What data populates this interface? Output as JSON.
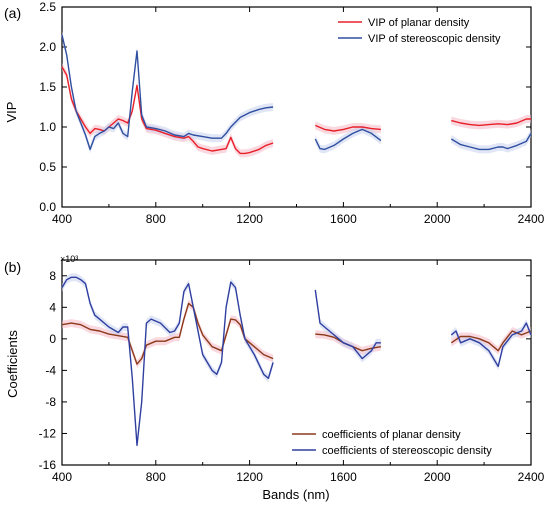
{
  "colors": {
    "planar_vip": "#e8202a",
    "stereo_vip": "#2f4f9f",
    "planar_coef": "#8b3a1a",
    "stereo_coef": "#2f3f9f",
    "band_planar": "#f4b8c4",
    "band_stereo": "#c9d2f0"
  },
  "chart_data": [
    {
      "panel_label": "(a)",
      "type": "line",
      "xlabel": "",
      "ylabel": "VIP",
      "xlim": [
        400,
        2400
      ],
      "ylim": [
        0.0,
        2.5
      ],
      "xticks": [
        "400",
        "800",
        "1200",
        "1600",
        "2000",
        "2400"
      ],
      "yticks": [
        "0.0",
        "0.5",
        "1.0",
        "1.5",
        "2.0",
        "2.5"
      ],
      "legend_position": "top-right",
      "series": [
        {
          "name": "VIP of planar density",
          "color_key": "planar_vip",
          "segments": [
            [
              [
                400,
                1.75
              ],
              [
                420,
                1.65
              ],
              [
                440,
                1.35
              ],
              [
                460,
                1.2
              ],
              [
                480,
                1.1
              ],
              [
                500,
                1.0
              ],
              [
                520,
                0.92
              ],
              [
                540,
                0.98
              ],
              [
                560,
                0.97
              ],
              [
                580,
                0.95
              ],
              [
                600,
                1.0
              ],
              [
                620,
                1.05
              ],
              [
                640,
                1.1
              ],
              [
                660,
                1.08
              ],
              [
                680,
                1.05
              ],
              [
                700,
                1.2
              ],
              [
                720,
                1.52
              ],
              [
                740,
                1.1
              ],
              [
                760,
                0.98
              ],
              [
                800,
                0.96
              ],
              [
                840,
                0.92
              ],
              [
                880,
                0.88
              ],
              [
                920,
                0.86
              ],
              [
                940,
                0.88
              ],
              [
                960,
                0.82
              ],
              [
                980,
                0.75
              ],
              [
                1000,
                0.73
              ],
              [
                1040,
                0.7
              ],
              [
                1080,
                0.72
              ],
              [
                1100,
                0.73
              ],
              [
                1120,
                0.87
              ],
              [
                1140,
                0.73
              ],
              [
                1160,
                0.67
              ],
              [
                1180,
                0.67
              ],
              [
                1200,
                0.68
              ],
              [
                1240,
                0.72
              ],
              [
                1270,
                0.77
              ],
              [
                1300,
                0.8
              ]
            ],
            [
              [
                1480,
                1.02
              ],
              [
                1520,
                0.97
              ],
              [
                1560,
                0.95
              ],
              [
                1600,
                0.97
              ],
              [
                1640,
                1.0
              ],
              [
                1680,
                1.0
              ],
              [
                1720,
                0.98
              ],
              [
                1760,
                0.97
              ]
            ],
            [
              [
                2060,
                1.08
              ],
              [
                2100,
                1.05
              ],
              [
                2140,
                1.03
              ],
              [
                2180,
                1.02
              ],
              [
                2220,
                1.03
              ],
              [
                2260,
                1.04
              ],
              [
                2300,
                1.03
              ],
              [
                2340,
                1.05
              ],
              [
                2380,
                1.1
              ],
              [
                2400,
                1.1
              ]
            ]
          ]
        },
        {
          "name": "VIP of stereoscopic density",
          "color_key": "stereo_vip",
          "segments": [
            [
              [
                400,
                2.15
              ],
              [
                420,
                1.9
              ],
              [
                440,
                1.5
              ],
              [
                460,
                1.2
              ],
              [
                480,
                1.05
              ],
              [
                500,
                0.9
              ],
              [
                520,
                0.72
              ],
              [
                540,
                0.88
              ],
              [
                560,
                0.92
              ],
              [
                580,
                0.95
              ],
              [
                600,
                1.0
              ],
              [
                620,
                0.98
              ],
              [
                640,
                1.05
              ],
              [
                660,
                0.92
              ],
              [
                680,
                0.88
              ],
              [
                700,
                1.45
              ],
              [
                720,
                1.95
              ],
              [
                740,
                1.15
              ],
              [
                760,
                1.0
              ],
              [
                800,
                0.98
              ],
              [
                840,
                0.95
              ],
              [
                880,
                0.9
              ],
              [
                920,
                0.88
              ],
              [
                940,
                0.92
              ],
              [
                960,
                0.9
              ],
              [
                1000,
                0.88
              ],
              [
                1040,
                0.86
              ],
              [
                1080,
                0.86
              ],
              [
                1100,
                0.92
              ],
              [
                1120,
                1.0
              ],
              [
                1160,
                1.12
              ],
              [
                1200,
                1.18
              ],
              [
                1240,
                1.22
              ],
              [
                1270,
                1.24
              ],
              [
                1300,
                1.25
              ]
            ],
            [
              [
                1480,
                0.85
              ],
              [
                1500,
                0.73
              ],
              [
                1520,
                0.72
              ],
              [
                1560,
                0.77
              ],
              [
                1600,
                0.85
              ],
              [
                1640,
                0.92
              ],
              [
                1680,
                0.97
              ],
              [
                1720,
                0.92
              ],
              [
                1760,
                0.83
              ]
            ],
            [
              [
                2060,
                0.85
              ],
              [
                2100,
                0.78
              ],
              [
                2140,
                0.75
              ],
              [
                2180,
                0.72
              ],
              [
                2220,
                0.72
              ],
              [
                2260,
                0.75
              ],
              [
                2280,
                0.75
              ],
              [
                2300,
                0.73
              ],
              [
                2340,
                0.77
              ],
              [
                2380,
                0.82
              ],
              [
                2400,
                0.92
              ]
            ]
          ]
        }
      ]
    },
    {
      "panel_label": "(b)",
      "type": "line",
      "xlabel": "Bands (nm)",
      "ylabel": "Coefficients",
      "scale_note": "×10³",
      "xlim": [
        400,
        2400
      ],
      "ylim": [
        -16,
        10
      ],
      "xticks": [
        "400",
        "800",
        "1200",
        "1600",
        "2000",
        "2400"
      ],
      "yticks": [
        "-16",
        "-12",
        "-8",
        "-4",
        "0",
        "4",
        "8"
      ],
      "legend_position": "bottom-right",
      "series": [
        {
          "name": "coefficients of planar density",
          "color_key": "planar_coef",
          "segments": [
            [
              [
                400,
                1.8
              ],
              [
                440,
                2.0
              ],
              [
                480,
                1.8
              ],
              [
                520,
                1.2
              ],
              [
                560,
                1.0
              ],
              [
                600,
                0.6
              ],
              [
                640,
                0.4
              ],
              [
                680,
                0.2
              ],
              [
                700,
                -1.5
              ],
              [
                720,
                -3.2
              ],
              [
                740,
                -2.5
              ],
              [
                760,
                -0.8
              ],
              [
                800,
                -0.3
              ],
              [
                840,
                -0.3
              ],
              [
                880,
                0.2
              ],
              [
                900,
                0.2
              ],
              [
                920,
                2.5
              ],
              [
                940,
                4.5
              ],
              [
                960,
                4.0
              ],
              [
                980,
                2.0
              ],
              [
                1000,
                0.5
              ],
              [
                1040,
                -1.0
              ],
              [
                1080,
                -1.5
              ],
              [
                1100,
                0.5
              ],
              [
                1120,
                2.5
              ],
              [
                1140,
                2.4
              ],
              [
                1160,
                1.8
              ],
              [
                1180,
                0.0
              ],
              [
                1220,
                -1.0
              ],
              [
                1260,
                -2.0
              ],
              [
                1300,
                -2.5
              ]
            ],
            [
              [
                1480,
                0.6
              ],
              [
                1520,
                0.5
              ],
              [
                1560,
                0.2
              ],
              [
                1600,
                -0.5
              ],
              [
                1640,
                -1.0
              ],
              [
                1680,
                -1.5
              ],
              [
                1720,
                -1.2
              ],
              [
                1760,
                -1.0
              ]
            ],
            [
              [
                2060,
                -0.5
              ],
              [
                2100,
                0.3
              ],
              [
                2140,
                0.3
              ],
              [
                2180,
                0.0
              ],
              [
                2220,
                -0.5
              ],
              [
                2260,
                -1.5
              ],
              [
                2280,
                -0.5
              ],
              [
                2320,
                1.0
              ],
              [
                2360,
                0.5
              ],
              [
                2400,
                1.0
              ]
            ]
          ]
        },
        {
          "name": "coefficients of stereoscopic density",
          "color_key": "stereo_coef",
          "segments": [
            [
              [
                400,
                6.5
              ],
              [
                420,
                7.5
              ],
              [
                440,
                7.8
              ],
              [
                460,
                7.8
              ],
              [
                480,
                7.5
              ],
              [
                500,
                7.0
              ],
              [
                520,
                4.5
              ],
              [
                540,
                3.0
              ],
              [
                560,
                2.5
              ],
              [
                600,
                1.5
              ],
              [
                640,
                0.8
              ],
              [
                660,
                1.5
              ],
              [
                680,
                1.5
              ],
              [
                700,
                -5.0
              ],
              [
                720,
                -13.5
              ],
              [
                740,
                -8.0
              ],
              [
                760,
                2.0
              ],
              [
                780,
                2.5
              ],
              [
                820,
                2.0
              ],
              [
                860,
                0.8
              ],
              [
                880,
                1.0
              ],
              [
                900,
                2.0
              ],
              [
                920,
                6.0
              ],
              [
                940,
                7.0
              ],
              [
                960,
                4.0
              ],
              [
                980,
                1.0
              ],
              [
                1000,
                -2.0
              ],
              [
                1040,
                -4.0
              ],
              [
                1060,
                -4.5
              ],
              [
                1080,
                -3.0
              ],
              [
                1100,
                4.0
              ],
              [
                1120,
                7.2
              ],
              [
                1140,
                6.5
              ],
              [
                1160,
                3.0
              ],
              [
                1180,
                0.0
              ],
              [
                1220,
                -2.0
              ],
              [
                1260,
                -4.5
              ],
              [
                1280,
                -5.0
              ],
              [
                1300,
                -3.0
              ]
            ],
            [
              [
                1480,
                6.2
              ],
              [
                1500,
                2.0
              ],
              [
                1520,
                1.5
              ],
              [
                1560,
                0.5
              ],
              [
                1600,
                -0.5
              ],
              [
                1640,
                -1.0
              ],
              [
                1680,
                -2.5
              ],
              [
                1720,
                -1.5
              ],
              [
                1740,
                -0.5
              ],
              [
                1760,
                -0.5
              ]
            ],
            [
              [
                2060,
                0.5
              ],
              [
                2080,
                1.0
              ],
              [
                2100,
                -0.5
              ],
              [
                2140,
                0.0
              ],
              [
                2180,
                -0.5
              ],
              [
                2220,
                -1.5
              ],
              [
                2260,
                -3.5
              ],
              [
                2280,
                -1.0
              ],
              [
                2320,
                0.5
              ],
              [
                2360,
                1.0
              ],
              [
                2380,
                2.0
              ],
              [
                2400,
                0.5
              ]
            ]
          ]
        }
      ]
    }
  ]
}
